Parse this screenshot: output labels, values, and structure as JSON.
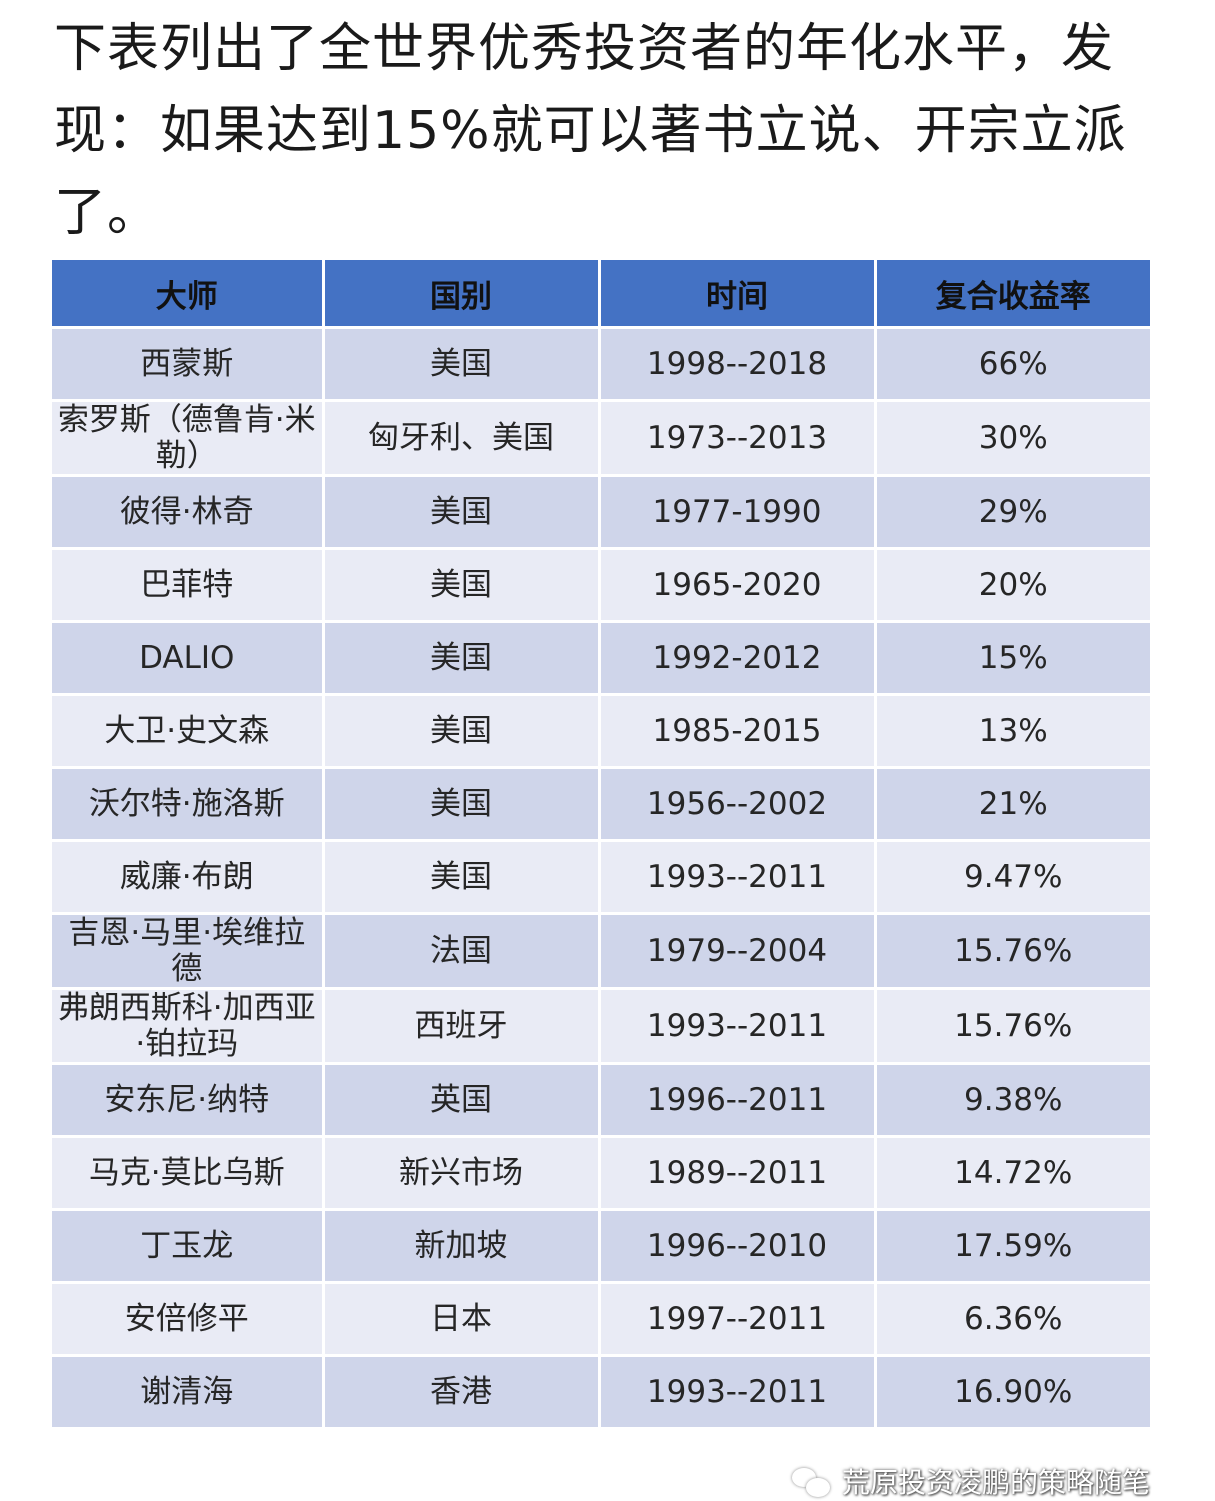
{
  "intro": "下表列出了全世界优秀投资者的年化水平，发现：如果达到15%就可以著书立说、开宗立派了。",
  "table": {
    "headers": [
      "大师",
      "国别",
      "时间",
      "复合收益率"
    ],
    "rows": [
      [
        "西蒙斯",
        "美国",
        "1998--2018",
        "66%"
      ],
      [
        "索罗斯（德鲁肯·米勒）",
        "匈牙利、美国",
        "1973--2013",
        "30%"
      ],
      [
        "彼得·林奇",
        "美国",
        "1977-1990",
        "29%"
      ],
      [
        "巴菲特",
        "美国",
        "1965-2020",
        "20%"
      ],
      [
        "DALIO",
        "美国",
        "1992-2012",
        "15%"
      ],
      [
        "大卫·史文森",
        "美国",
        "1985-2015",
        "13%"
      ],
      [
        "沃尔特·施洛斯",
        "美国",
        "1956--2002",
        "21%"
      ],
      [
        "威廉·布朗",
        "美国",
        "1993--2011",
        "9.47%"
      ],
      [
        "吉恩·马里·埃维拉德",
        "法国",
        "1979--2004",
        "15.76%"
      ],
      [
        "弗朗西斯科·加西亚·铂拉玛",
        "西班牙",
        "1993--2011",
        "15.76%"
      ],
      [
        "安东尼·纳特",
        "英国",
        "1996--2011",
        "9.38%"
      ],
      [
        "马克·莫比乌斯",
        "新兴市场",
        "1989--2011",
        "14.72%"
      ],
      [
        "丁玉龙",
        "新加坡",
        "1996--2010",
        "17.59%"
      ],
      [
        "安倍修平",
        "日本",
        "1997--2011",
        "6.36%"
      ],
      [
        "谢清海",
        "香港",
        "1993--2011",
        "16.90%"
      ]
    ]
  },
  "watermark": "荒原投资凌鹏的策略随笔",
  "colors": {
    "header": "#4472c4",
    "row_odd": "#cfd5ea",
    "row_even": "#e9ebf5"
  }
}
